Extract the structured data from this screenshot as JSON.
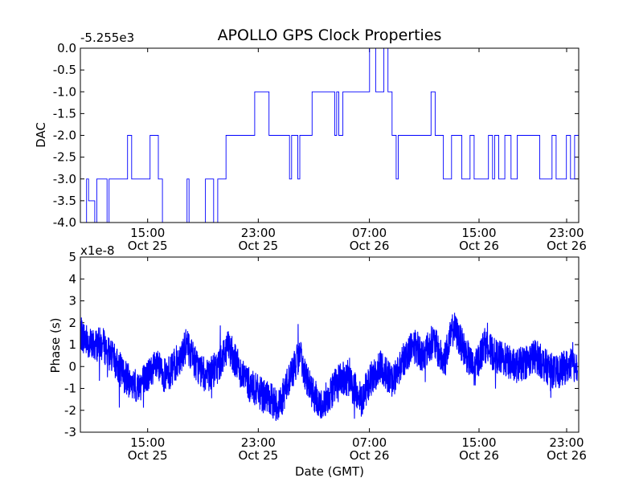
{
  "chart_data": [
    {
      "type": "line",
      "title": "APOLLO GPS Clock Properties",
      "ylabel": "DAC",
      "xlabel": "",
      "y_offset_label": "-5.255e3",
      "ylim": [
        -4.0,
        0.0
      ],
      "yticks": [
        "0.0",
        "-0.5",
        "-1.0",
        "-1.5",
        "-2.0",
        "-2.5",
        "-3.0",
        "-3.5",
        "-4.0"
      ],
      "xlim_hours": [
        11.3,
        35.6
      ],
      "xticks": [
        {
          "hour": 15,
          "line1": "15:00",
          "line2": "Oct 25"
        },
        {
          "hour": 23,
          "line1": "23:00",
          "line2": "Oct 25"
        },
        {
          "hour": 31,
          "line1": "07:00",
          "line2": "Oct 26"
        },
        {
          "hour": 39,
          "line1": "15:00",
          "line2": "Oct 26"
        },
        {
          "hour": 47,
          "line1": "23:00",
          "line2": "Oct 26"
        }
      ],
      "series": [
        {
          "name": "DAC",
          "color": "#0000ff",
          "x_hours": [
            11.5,
            11.6,
            11.7,
            12.0,
            12.1,
            12.2,
            12.6,
            12.7,
            13.0,
            13.3,
            13.6,
            13.7,
            13.8,
            14.6,
            14.7,
            15.1,
            15.3,
            16.3,
            16.5,
            16.6,
            17.4,
            17.6,
            17.8,
            18.0,
            18.1,
            18.4,
            18.8,
            19.6,
            19.8,
            20.5,
            20.6,
            21.5,
            21.6,
            21.9,
            22.0,
            22.3,
            22.5,
            22.6,
            23.5,
            23.7,
            23.8,
            23.9,
            24.1,
            24.8,
            25.4,
            25.7,
            26.1,
            26.3,
            26.4,
            26.5,
            26.6,
            26.7,
            26.8,
            27.0,
            28.0,
            28.4,
            28.6,
            29.0,
            29.4,
            29.6,
            29.9,
            30.3,
            30.5,
            31.2,
            31.4,
            31.5,
            31.7,
            32.0,
            32.3,
            32.6,
            33.5,
            33.7,
            34.3,
            34.5,
            35.0,
            35.2,
            35.4,
            35.55
          ],
          "values": [
            -4.0,
            -3.0,
            -3.5,
            -4.0,
            -3.0,
            -3.0,
            -4.0,
            -3.0,
            -3.0,
            -3.0,
            -2.0,
            -2.0,
            -3.0,
            -3.0,
            -2.0,
            -3.0,
            -4.0,
            -4.0,
            -3.0,
            -4.0,
            -3.0,
            -3.0,
            -4.0,
            -3.0,
            -3.0,
            -2.0,
            -2.0,
            -2.0,
            -1.0,
            -2.0,
            -2.0,
            -3.0,
            -2.0,
            -3.0,
            -2.0,
            -2.0,
            -2.0,
            -1.0,
            -1.0,
            -2.0,
            -1.0,
            -2.0,
            -1.0,
            -1.0,
            0.0,
            -1.0,
            -0.0,
            -1.0,
            -1.0,
            -2.0,
            -2.0,
            -3.0,
            -2.0,
            -2.0,
            -2.0,
            -1.0,
            -2.0,
            -3.0,
            -2.0,
            -2.0,
            -3.0,
            -2.0,
            -3.0,
            -2.0,
            -3.0,
            -2.0,
            -3.0,
            -2.0,
            -3.0,
            -2.0,
            -2.0,
            -3.0,
            -2.0,
            -3.0,
            -2.0,
            -3.0,
            -2.0,
            -2.0
          ]
        }
      ]
    },
    {
      "type": "line",
      "title": "",
      "ylabel": "Phase (s)",
      "xlabel": "Date (GMT)",
      "y_offset_label": "x1e-8",
      "ylim": [
        -3,
        5
      ],
      "yticks": [
        "5",
        "4",
        "3",
        "2",
        "1",
        "0",
        "-1",
        "-2",
        "-3"
      ],
      "xlim_hours": [
        11.3,
        35.6
      ],
      "xticks": [
        {
          "hour": 15,
          "line1": "15:00",
          "line2": "Oct 25"
        },
        {
          "hour": 23,
          "line1": "23:00",
          "line2": "Oct 25"
        },
        {
          "hour": 31,
          "line1": "07:00",
          "line2": "Oct 26"
        },
        {
          "hour": 39,
          "line1": "15:00",
          "line2": "Oct 26"
        },
        {
          "hour": 47,
          "line1": "23:00",
          "line2": "Oct 26"
        }
      ],
      "series": [
        {
          "name": "Phase",
          "color": "#0000ff",
          "x_hours": [
            11.3,
            11.8,
            12.4,
            13.0,
            13.5,
            14.0,
            14.5,
            15.0,
            15.5,
            16.0,
            16.5,
            17.0,
            17.5,
            18.0,
            18.5,
            19.0,
            19.5,
            20.0,
            20.5,
            21.0,
            21.5,
            22.0,
            22.5,
            23.0,
            23.5,
            24.0,
            24.5,
            25.0,
            25.5,
            26.0,
            26.5,
            27.0,
            27.5,
            28.0,
            28.5,
            29.0,
            29.5,
            30.0,
            30.5,
            31.0,
            31.5,
            32.0,
            32.5,
            33.0,
            33.5,
            34.0,
            34.5,
            35.0,
            35.55
          ],
          "values": [
            1.5,
            1.0,
            1.0,
            0.2,
            -0.5,
            -1.0,
            -0.5,
            0.0,
            -0.5,
            0.2,
            1.0,
            0.0,
            -0.5,
            0.0,
            1.0,
            0.0,
            -0.8,
            -1.2,
            -1.5,
            -1.8,
            -0.5,
            0.5,
            -1.0,
            -1.8,
            -1.2,
            -0.5,
            -0.8,
            -1.5,
            -0.5,
            0.0,
            -0.7,
            0.2,
            1.0,
            0.5,
            1.2,
            0.2,
            1.8,
            0.8,
            -0.2,
            1.0,
            0.5,
            0.3,
            0.0,
            0.2,
            0.5,
            0.0,
            -0.3,
            0.0,
            0.1
          ]
        }
      ]
    }
  ]
}
